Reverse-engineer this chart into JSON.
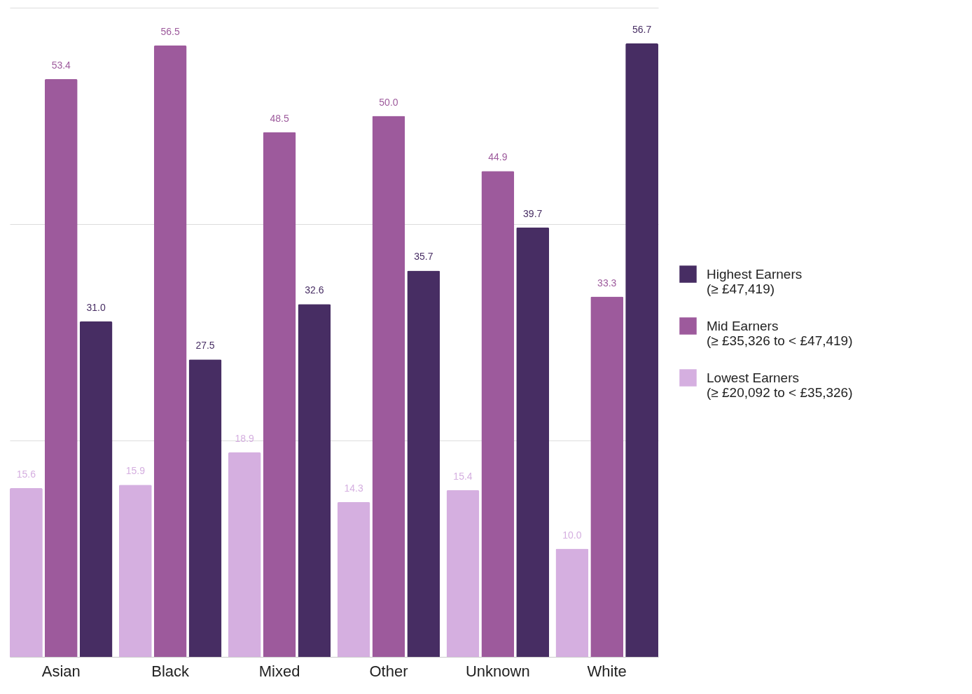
{
  "chart_data": {
    "type": "bar",
    "categories": [
      "Asian",
      "Black",
      "Mixed",
      "Other",
      "Unknown",
      "White"
    ],
    "series": [
      {
        "name": "Highest Earners\n(≥ £47,419)",
        "color": "#472d63",
        "values": [
          31.0,
          27.5,
          32.6,
          35.7,
          39.7,
          56.7
        ],
        "value_labels": [
          "31.0",
          "27.5",
          "32.6",
          "35.7",
          "39.7",
          "56.7"
        ]
      },
      {
        "name": "Mid Earners\n(≥ £35,326 to < £47,419)",
        "color": "#9d5a9c",
        "values": [
          53.4,
          56.5,
          48.5,
          50.0,
          44.9,
          33.3
        ],
        "value_labels": [
          "53.4",
          "56.5",
          "48.5",
          "50.0",
          "44.9",
          "33.3"
        ]
      },
      {
        "name": "Lowest Earners\n(≥ £20,092 to < £35,326)",
        "color": "#d5afe0",
        "values": [
          15.6,
          15.9,
          18.9,
          14.3,
          15.4,
          10.0
        ],
        "value_labels": [
          "15.6",
          "15.9",
          "18.9",
          "14.3",
          "15.4",
          "10.0"
        ]
      }
    ],
    "ylim": [
      0,
      60
    ],
    "yticks": [
      {
        "value": 0,
        "label": null
      },
      {
        "value": 20,
        "label": null
      },
      {
        "value": 40,
        "label": null
      },
      {
        "value": 60,
        "label": null
      }
    ],
    "tick_labels": "x",
    "grid": "y",
    "legend": "right"
  }
}
